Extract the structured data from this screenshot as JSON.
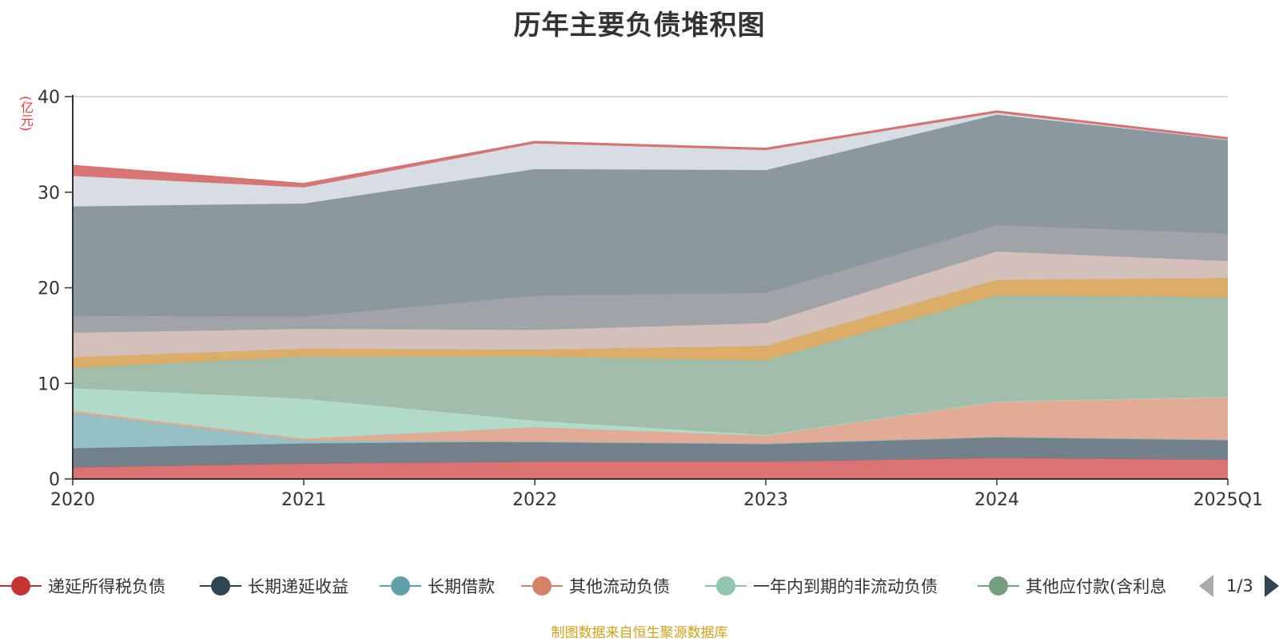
{
  "chart_data": {
    "type": "area",
    "stacked": true,
    "title": "历年主要负债堆积图",
    "unit_label": "(亿元)",
    "categories": [
      "2020",
      "2021",
      "2022",
      "2023",
      "2024",
      "2025Q1"
    ],
    "ylim": [
      0,
      40
    ],
    "y_ticks": [
      "0",
      "10",
      "20",
      "30",
      "40"
    ],
    "grid": true,
    "legend_position": "bottom",
    "series": [
      {
        "name": "递延所得税负债",
        "color": "#d96b6b",
        "values": [
          1.2,
          1.6,
          1.8,
          1.8,
          2.2,
          2.0
        ]
      },
      {
        "name": "长期递延收益",
        "color": "#6a7a86",
        "values": [
          2.0,
          2.1,
          2.1,
          1.9,
          2.2,
          2.1
        ]
      },
      {
        "name": "长期借款",
        "color": "#8fbec3",
        "values": [
          3.7,
          0.3,
          0.0,
          0.0,
          0.0,
          0.0
        ]
      },
      {
        "name": "其他流动负债",
        "color": "#e0a690",
        "values": [
          0.2,
          0.2,
          1.5,
          0.8,
          3.7,
          4.5
        ]
      },
      {
        "name": "一年内到期的非流动负债",
        "color": "#aed8c6",
        "values": [
          2.4,
          4.2,
          0.7,
          0.1,
          0.0,
          0.0
        ]
      },
      {
        "name": "其他应付款(含利息",
        "color": "#9dbba6",
        "values": [
          2.1,
          4.4,
          6.7,
          7.8,
          11.1,
          10.4
        ]
      },
      {
        "name": "",
        "color": "#dba962",
        "values": [
          1.1,
          0.8,
          0.7,
          1.5,
          1.6,
          2.0
        ]
      },
      {
        "name": "",
        "color": "#d2bdb7",
        "values": [
          2.6,
          2.1,
          2.1,
          2.4,
          3.0,
          1.8
        ]
      },
      {
        "name": "",
        "color": "#9b9ea3",
        "values": [
          1.8,
          1.3,
          3.6,
          3.2,
          2.8,
          2.9
        ]
      },
      {
        "name": "",
        "color": "#85929a",
        "values": [
          11.4,
          11.8,
          13.2,
          12.8,
          11.5,
          9.8
        ]
      },
      {
        "name": "",
        "color": "#d6dbe1",
        "values": [
          3.2,
          1.7,
          2.7,
          2.1,
          0.2,
          0.0
        ]
      },
      {
        "name": "",
        "color": "#d66f6f",
        "values": [
          1.1,
          0.4,
          0.2,
          0.2,
          0.2,
          0.2
        ]
      }
    ]
  },
  "legend": {
    "page_indicator": "1/3"
  },
  "footer": {
    "source": "制图数据来自恒生聚源数据库"
  }
}
